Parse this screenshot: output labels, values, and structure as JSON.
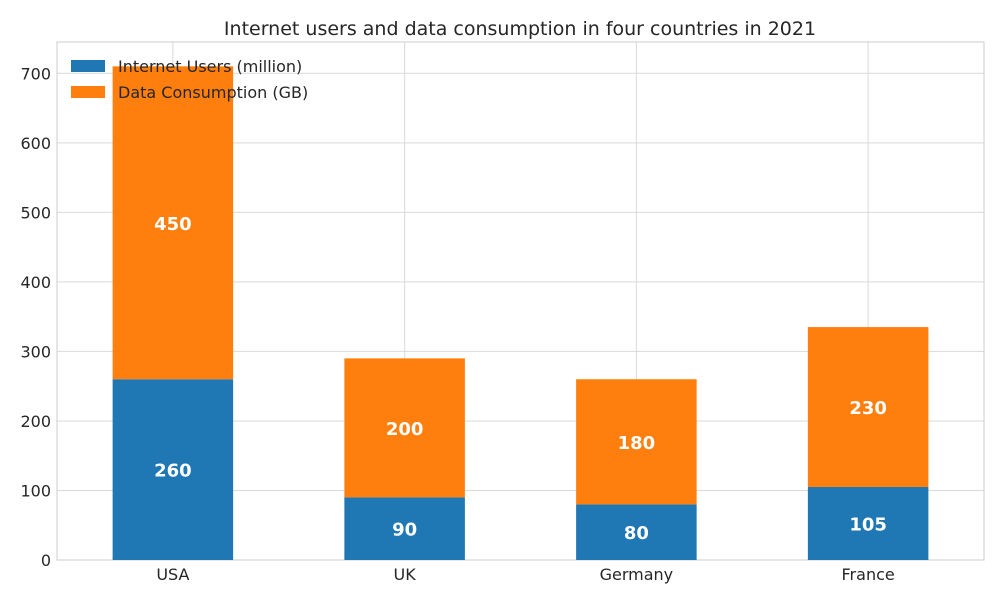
{
  "chart_data": {
    "type": "bar",
    "stacked": true,
    "title": "Internet users and data consumption in four countries in 2021",
    "xlabel": "",
    "ylabel": "",
    "categories": [
      "USA",
      "UK",
      "Germany",
      "France"
    ],
    "series": [
      {
        "name": "Internet Users (million)",
        "values": [
          260,
          90,
          80,
          105
        ],
        "color": "#1f77b4"
      },
      {
        "name": "Data Consumption (GB)",
        "values": [
          450,
          200,
          180,
          230
        ],
        "color": "#ff7f0e"
      }
    ],
    "ylim": [
      0,
      745
    ],
    "yticks": [
      0,
      100,
      200,
      300,
      400,
      500,
      600,
      700
    ],
    "grid": true,
    "legend_position": "top-left",
    "data_label_color": "#ffffff"
  }
}
